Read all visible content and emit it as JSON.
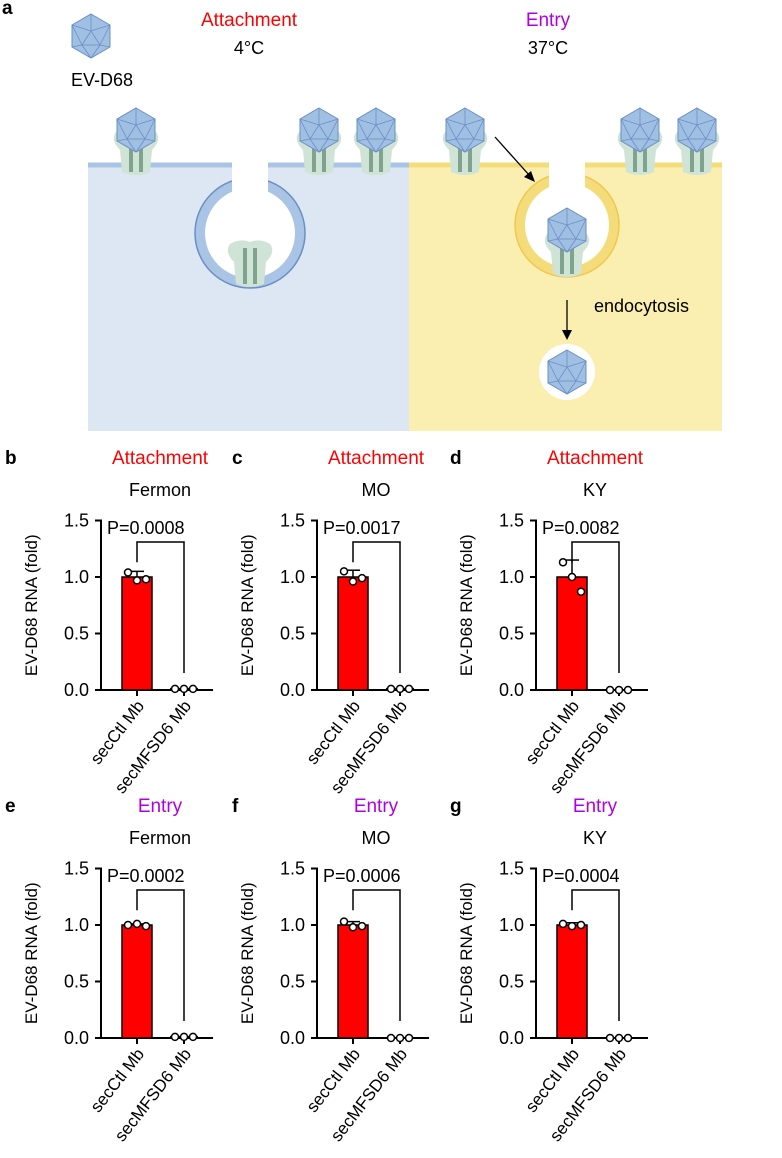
{
  "figure": {
    "panel_a": {
      "label": "a",
      "virus_name": "EV-D68",
      "attachment_title": "Attachment",
      "attachment_temp": "4°C",
      "entry_title": "Entry",
      "entry_temp": "37°C",
      "endocytosis_label": "endocytosis",
      "colors": {
        "attachment": "#ff0000",
        "entry": "#b000e0",
        "cell_attach": "#dce7f3",
        "cell_entry": "#faefb0",
        "virus": "#9fbfe3",
        "receptor": "#cfe3d6"
      }
    }
  },
  "chart_data": [
    {
      "type": "bar",
      "panel": "b",
      "title": "Attachment",
      "title_color": "#ff0000",
      "subtitle": "Fermon",
      "ylabel": "EV-D68  RNA (fold)",
      "ylim": [
        0,
        1.5
      ],
      "yticks": [
        "0.0",
        "0.5",
        "1.0",
        "1.5"
      ],
      "categories": [
        "secCtl Mb",
        "secMFSD6 Mb"
      ],
      "values": [
        1.0,
        0.01
      ],
      "errors": [
        0.05,
        0
      ],
      "points": [
        [
          1.04,
          0.97,
          0.98
        ],
        [
          0.01,
          0.01,
          0.01
        ]
      ],
      "pvalue": "P=0.0008",
      "bar_color": "#ff0000"
    },
    {
      "type": "bar",
      "panel": "c",
      "title": "Attachment",
      "title_color": "#ff0000",
      "subtitle": "MO",
      "ylabel": "EV-D68 RNA (fold)",
      "ylim": [
        0,
        1.5
      ],
      "yticks": [
        "0.0",
        "0.5",
        "1.0",
        "1.5"
      ],
      "categories": [
        "secCtl Mb",
        "secMFSD6 Mb"
      ],
      "values": [
        1.0,
        0.01
      ],
      "errors": [
        0.06,
        0
      ],
      "points": [
        [
          1.05,
          0.96,
          0.99
        ],
        [
          0.01,
          0.01,
          0.01
        ]
      ],
      "pvalue": "P=0.0017",
      "bar_color": "#ff0000"
    },
    {
      "type": "bar",
      "panel": "d",
      "title": "Attachment",
      "title_color": "#ff0000",
      "subtitle": "KY",
      "ylabel": "EV-D68 RNA (fold)",
      "ylim": [
        0,
        1.5
      ],
      "yticks": [
        "0.0",
        "0.5",
        "1.0",
        "1.5"
      ],
      "categories": [
        "secCtl Mb",
        "secMFSD6 Mb"
      ],
      "values": [
        1.0,
        0.0
      ],
      "errors": [
        0.15,
        0
      ],
      "points": [
        [
          1.13,
          1.0,
          0.87
        ],
        [
          0.0,
          0.0,
          0.0
        ]
      ],
      "pvalue": "P=0.0082",
      "bar_color": "#ff0000"
    },
    {
      "type": "bar",
      "panel": "e",
      "title": "Entry",
      "title_color": "#b000e0",
      "subtitle": "Fermon",
      "ylabel": "EV-D68 RNA (fold)",
      "ylim": [
        0,
        1.5
      ],
      "yticks": [
        "0.0",
        "0.5",
        "1.0",
        "1.5"
      ],
      "categories": [
        "secCtl Mb",
        "secMFSD6 Mb"
      ],
      "values": [
        1.0,
        0.01
      ],
      "errors": [
        0.01,
        0
      ],
      "points": [
        [
          1.0,
          1.01,
          0.99
        ],
        [
          0.01,
          0.01,
          0.01
        ]
      ],
      "pvalue": "P=0.0002",
      "bar_color": "#ff0000"
    },
    {
      "type": "bar",
      "panel": "f",
      "title": "Entry",
      "title_color": "#b000e0",
      "subtitle": "MO",
      "ylabel": "EV-D68 RNA (fold)",
      "ylim": [
        0,
        1.5
      ],
      "yticks": [
        "0.0",
        "0.5",
        "1.0",
        "1.5"
      ],
      "categories": [
        "secCtl Mb",
        "secMFSD6 Mb"
      ],
      "values": [
        1.0,
        0.0
      ],
      "errors": [
        0.03,
        0
      ],
      "points": [
        [
          1.03,
          0.98,
          0.99
        ],
        [
          0.0,
          0.0,
          0.0
        ]
      ],
      "pvalue": "P=0.0006",
      "bar_color": "#ff0000"
    },
    {
      "type": "bar",
      "panel": "g",
      "title": "Entry",
      "title_color": "#b000e0",
      "subtitle": "KY",
      "ylabel": "EV-D68 RNA (fold)",
      "ylim": [
        0,
        1.5
      ],
      "yticks": [
        "0.0",
        "0.5",
        "1.0",
        "1.5"
      ],
      "categories": [
        "secCtl Mb",
        "secMFSD6 Mb"
      ],
      "values": [
        1.0,
        0.0
      ],
      "errors": [
        0.02,
        0
      ],
      "points": [
        [
          1.01,
          0.99,
          1.0
        ],
        [
          0.0,
          0.0,
          0.0
        ]
      ],
      "pvalue": "P=0.0004",
      "bar_color": "#ff0000"
    }
  ]
}
